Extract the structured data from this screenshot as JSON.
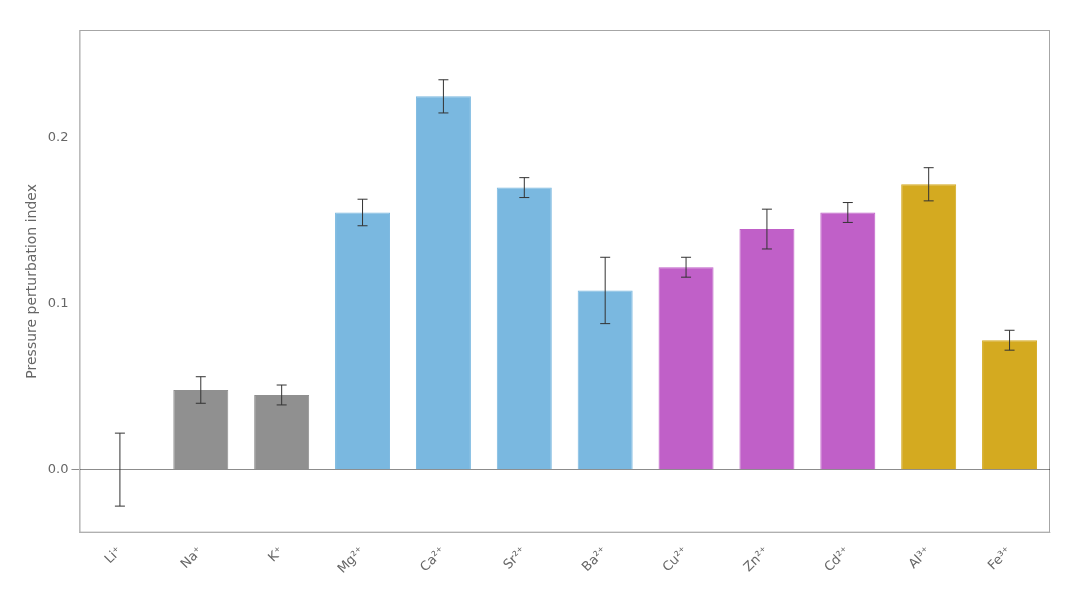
{
  "chart_data": {
    "type": "bar",
    "categories": [
      "Li⁺",
      "Na⁺",
      "K⁺",
      "Mg²⁺",
      "Ca²⁺",
      "Sr²⁺",
      "Ba²⁺",
      "Cu²⁺",
      "Zn²⁺",
      "Cd²⁺",
      "Al³⁺",
      "Fe³⁺"
    ],
    "values": [
      0.0,
      0.048,
      0.045,
      0.155,
      0.225,
      0.17,
      0.108,
      0.122,
      0.145,
      0.155,
      0.172,
      0.078
    ],
    "errors": [
      0.022,
      0.008,
      0.006,
      0.008,
      0.01,
      0.006,
      0.02,
      0.006,
      0.012,
      0.006,
      0.01,
      0.006
    ],
    "colors": [
      "#909090",
      "#909090",
      "#909090",
      "#7ab8e0",
      "#7ab8e0",
      "#7ab8e0",
      "#7ab8e0",
      "#c060c8",
      "#c060c8",
      "#c060c8",
      "#d4aa20",
      "#d4aa20"
    ],
    "y_label": "Pressure perturbation index",
    "ylim": [
      -0.038,
      0.265
    ],
    "yticks": [
      {
        "value": 0.0,
        "label": "0.0"
      },
      0.1,
      0.2
    ],
    "grid": false,
    "legend": false
  }
}
